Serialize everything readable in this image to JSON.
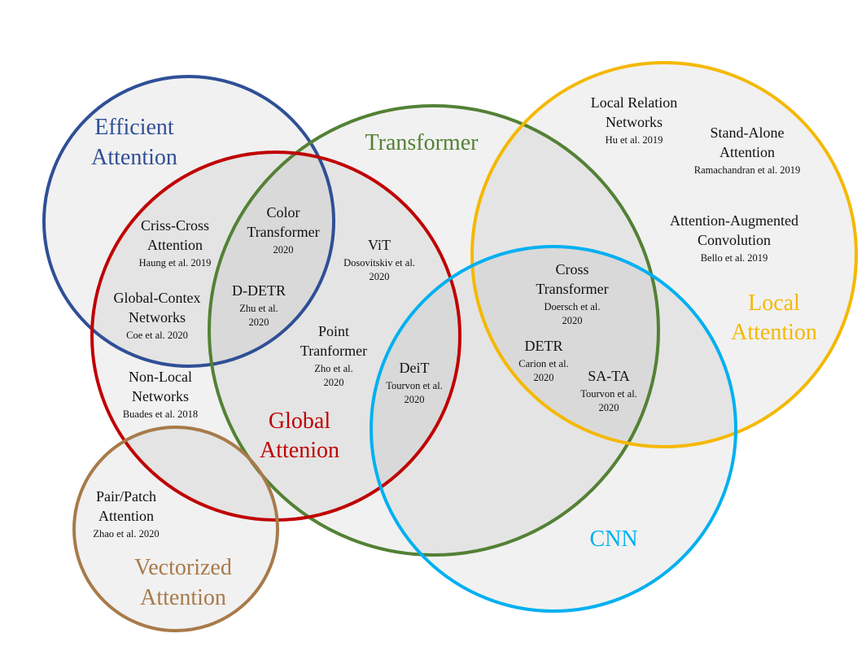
{
  "sets": [
    {
      "id": "efficient",
      "color": "#2f4f96",
      "label_lines": [
        "Efficient",
        "Attention"
      ]
    },
    {
      "id": "transformer",
      "color": "#538135",
      "label_lines": [
        "Transformer"
      ]
    },
    {
      "id": "local",
      "color": "#f5b800",
      "label_lines": [
        "Local",
        "Attention"
      ]
    },
    {
      "id": "global",
      "color": "#c00000",
      "label_lines": [
        "Global",
        "Attenion"
      ]
    },
    {
      "id": "cnn",
      "color": "#00b0f0",
      "label_lines": [
        "CNN"
      ]
    },
    {
      "id": "vectorized",
      "color": "#a87a4a",
      "label_lines": [
        "Vectorized",
        "Attention"
      ]
    }
  ],
  "methods": [
    {
      "id": "criss-cross",
      "name_lines": [
        "Criss-Cross",
        "Attention"
      ],
      "cite_lines": [
        "Haung et al. 2019"
      ]
    },
    {
      "id": "color-transformer",
      "name_lines": [
        "Color",
        "Transformer"
      ],
      "cite_lines": [
        "2020"
      ]
    },
    {
      "id": "vit",
      "name_lines": [
        "ViT"
      ],
      "cite_lines": [
        "Dosovitskiv  et al.",
        "2020"
      ]
    },
    {
      "id": "global-context",
      "name_lines": [
        "Global-Contex",
        "Networks"
      ],
      "cite_lines": [
        "Coe et al. 2020"
      ]
    },
    {
      "id": "d-detr",
      "name_lines": [
        "D-DETR"
      ],
      "cite_lines": [
        "Zhu et al.",
        "2020"
      ]
    },
    {
      "id": "point-transformer",
      "name_lines": [
        "Point",
        "Tranformer"
      ],
      "cite_lines": [
        "Zho et al.",
        "2020"
      ]
    },
    {
      "id": "deit",
      "name_lines": [
        "DeiT"
      ],
      "cite_lines": [
        "Tourvon et al.",
        "2020"
      ]
    },
    {
      "id": "non-local",
      "name_lines": [
        "Non-Local",
        "Networks"
      ],
      "cite_lines": [
        "Buades et al. 2018"
      ]
    },
    {
      "id": "pair-patch",
      "name_lines": [
        "Pair/Patch",
        "Attention"
      ],
      "cite_lines": [
        "Zhao et al. 2020"
      ]
    },
    {
      "id": "local-relation",
      "name_lines": [
        "Local Relation",
        "Networks"
      ],
      "cite_lines": [
        "Hu et al. 2019"
      ]
    },
    {
      "id": "stand-alone",
      "name_lines": [
        "Stand-Alone",
        "Attention"
      ],
      "cite_lines": [
        "Ramachandran et al. 2019"
      ]
    },
    {
      "id": "attention-augmented",
      "name_lines": [
        "Attention-Augmented",
        "Convolution"
      ],
      "cite_lines": [
        "Bello et al. 2019"
      ]
    },
    {
      "id": "cross-transformer",
      "name_lines": [
        "Cross",
        "Transformer"
      ],
      "cite_lines": [
        "Doersch et al.",
        "2020"
      ]
    },
    {
      "id": "detr",
      "name_lines": [
        "DETR"
      ],
      "cite_lines": [
        "Carion et al.",
        "2020"
      ]
    },
    {
      "id": "sa-ta",
      "name_lines": [
        "SA-TA"
      ],
      "cite_lines": [
        "Tourvon et al.",
        "2020"
      ]
    }
  ]
}
